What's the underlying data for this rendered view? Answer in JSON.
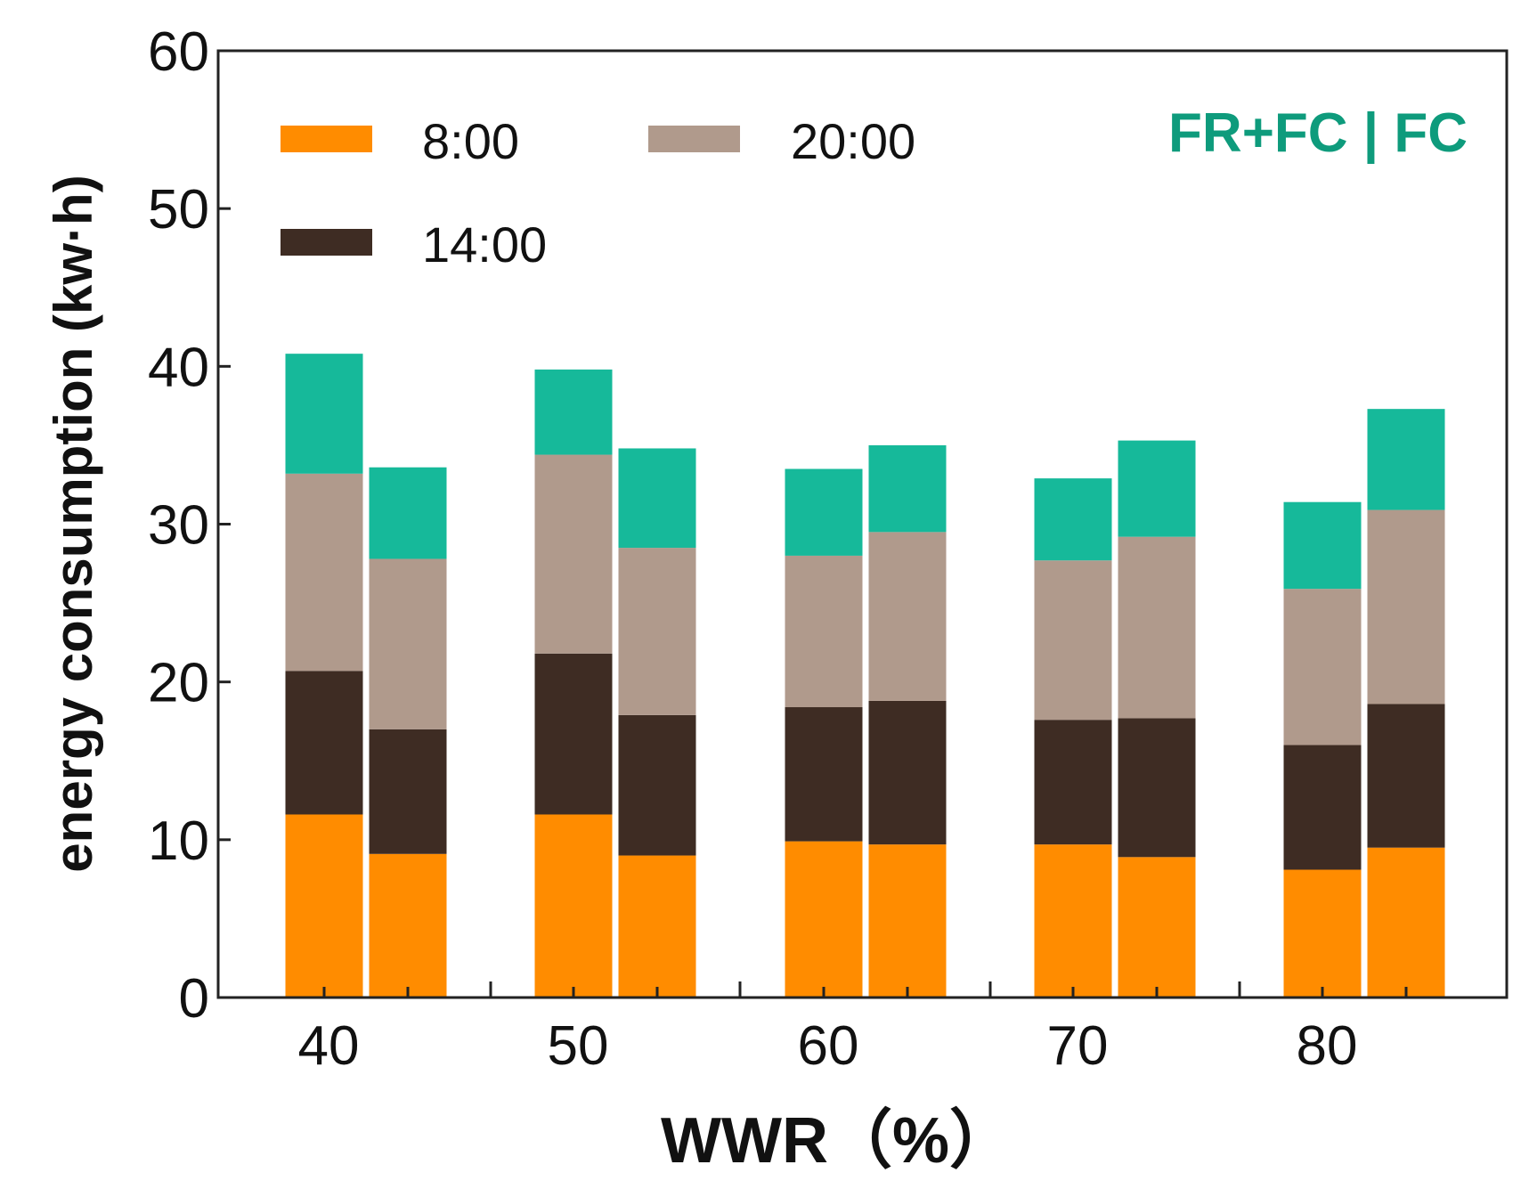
{
  "chart_data": {
    "type": "bar",
    "stacked": true,
    "title": "",
    "annotation": "FR+FC | FC",
    "xlabel": "WWR（%）",
    "ylabel": "energy consumption (kw·h)",
    "ylim": [
      0,
      60
    ],
    "yticks": [
      "0",
      "10",
      "20",
      "30",
      "40",
      "50",
      "60"
    ],
    "categories": [
      "40",
      "50",
      "60",
      "70",
      "80"
    ],
    "bars_per_category": [
      "FR+FC",
      "FC"
    ],
    "legend": [
      {
        "label": "8:00",
        "color": "#ff8c00"
      },
      {
        "label": "20:00",
        "color": "#b09a8c"
      },
      {
        "label": "14:00",
        "color": "#3e2c23"
      }
    ],
    "top_segment_color": "#16b99a",
    "annotation_color": "#0e9b7c",
    "series": [
      {
        "name": "8:00",
        "color": "#ff8c00",
        "FR+FC": [
          11.6,
          11.6,
          9.9,
          9.7,
          8.1
        ],
        "FC": [
          9.1,
          9.0,
          9.7,
          8.9,
          9.5
        ]
      },
      {
        "name": "14:00",
        "color": "#3e2c23",
        "FR+FC": [
          9.1,
          10.2,
          8.5,
          7.9,
          7.9
        ],
        "FC": [
          7.9,
          8.9,
          9.1,
          8.8,
          9.1
        ]
      },
      {
        "name": "20:00",
        "color": "#b09a8c",
        "FR+FC": [
          12.5,
          12.6,
          9.6,
          10.1,
          9.9
        ],
        "FC": [
          10.8,
          10.6,
          10.7,
          11.5,
          12.3
        ]
      },
      {
        "name": "unlabeled",
        "color": "#16b99a",
        "FR+FC": [
          7.6,
          5.4,
          5.5,
          5.2,
          5.5
        ],
        "FC": [
          5.8,
          6.3,
          5.5,
          6.1,
          6.4
        ]
      }
    ]
  }
}
